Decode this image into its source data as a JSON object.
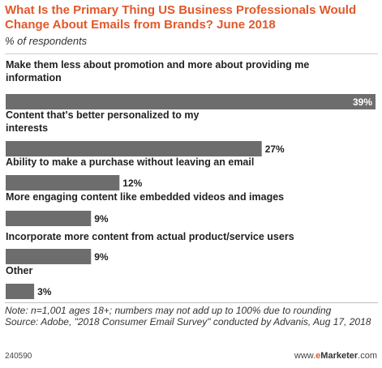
{
  "header": {
    "title": "What Is the Primary Thing US Business Professionals Would Change About Emails from Brands? June 2018",
    "subtitle": "% of respondents"
  },
  "chart_data": {
    "type": "bar",
    "orientation": "horizontal",
    "categories": [
      "Make them less about promotion and more about providing me information",
      "Content that's better personalized to my interests",
      "Ability to make a purchase without leaving an email",
      "More engaging content like embedded videos and images",
      "Incorporate more content from actual product/service users",
      "Other"
    ],
    "category_lines": [
      [
        "Make them less about promotion and more about providing me",
        "information"
      ],
      [
        "Content that's better personalized to my",
        "interests"
      ],
      [
        "Ability to make a purchase without leaving an email"
      ],
      [
        "More engaging content like embedded videos and images"
      ],
      [
        "Incorporate more content from actual product/service users"
      ],
      [
        "Other"
      ]
    ],
    "values": [
      39,
      27,
      12,
      9,
      9,
      3
    ],
    "value_labels": [
      "39%",
      "27%",
      "12%",
      "9%",
      "9%",
      "3%"
    ],
    "xlim": [
      0,
      39
    ],
    "bar_color": "#6d6d6d",
    "grid": false
  },
  "footer": {
    "note": "Note: n=1,001 ages 18+; numbers may not add up to 100% due to rounding",
    "source": "Source: Adobe, \"2018 Consumer Email Survey\" conducted by Advanis, Aug 17, 2018",
    "chart_id": "240590",
    "brand_prefix": "www.",
    "brand_e": "e",
    "brand_name": "Marketer",
    "brand_suffix": ".com"
  }
}
